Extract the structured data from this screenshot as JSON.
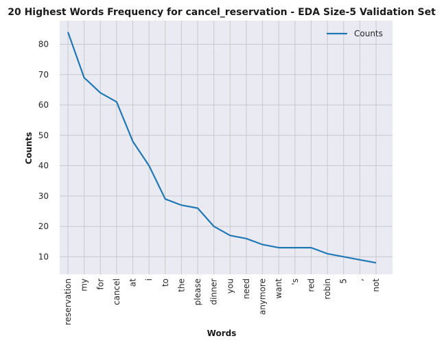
{
  "chart_data": {
    "type": "line",
    "title": "20 Highest Words Frequency for cancel_reservation - EDA Size-5 Validation Set",
    "xlabel": "Words",
    "ylabel": "Counts",
    "categories": [
      "reservation",
      "my",
      "for",
      "cancel",
      "at",
      "i",
      "to",
      "the",
      "please",
      "dinner",
      "you",
      "need",
      "anymore",
      "want",
      "'s",
      "red",
      "robin",
      "5",
      ",",
      "not"
    ],
    "series": [
      {
        "name": "Counts",
        "values": [
          84,
          69,
          64,
          61,
          48,
          40,
          29,
          27,
          26,
          20,
          17,
          16,
          14,
          13,
          13,
          13,
          11,
          10,
          9,
          8
        ]
      }
    ],
    "yticks": [
      10,
      20,
      30,
      40,
      50,
      60,
      70,
      80
    ],
    "ylim": [
      4.2,
      87.8
    ],
    "grid": true,
    "legend_position": "top-right",
    "colors": {
      "line": "#1f77b4",
      "plot_background": "#eaeaf2",
      "grid": "#c8c8cc"
    }
  }
}
